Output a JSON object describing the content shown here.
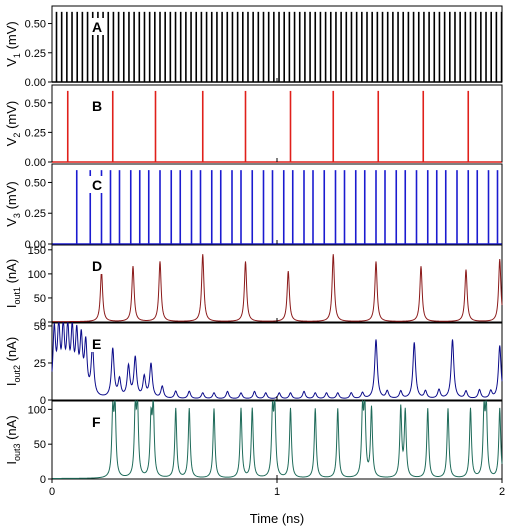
{
  "chart_data": {
    "type": "line",
    "xlabel": "Time (ns)",
    "xlim": [
      0,
      2
    ],
    "x_ticks": [
      0,
      1,
      2
    ],
    "x_tick_labels": [
      "0",
      "1",
      "2"
    ],
    "panels": [
      {
        "letter": "A",
        "ylabel": "V",
        "ylabel_sub": "1",
        "ylabel_unit": " (mV)",
        "color": "#000000",
        "kind": "spikes",
        "ylim": [
          0,
          0.65
        ],
        "y_ticks": [
          "0.00",
          "0.25",
          "0.50"
        ],
        "y_tick_values": [
          0,
          0.25,
          0.5
        ],
        "spike_height": 0.6,
        "spike_times": [
          0.02,
          0.043,
          0.066,
          0.089,
          0.112,
          0.135,
          0.158,
          0.181,
          0.204,
          0.227,
          0.25,
          0.273,
          0.296,
          0.319,
          0.342,
          0.365,
          0.388,
          0.411,
          0.434,
          0.457,
          0.48,
          0.503,
          0.526,
          0.549,
          0.572,
          0.595,
          0.618,
          0.641,
          0.664,
          0.687,
          0.71,
          0.733,
          0.756,
          0.779,
          0.802,
          0.825,
          0.848,
          0.871,
          0.894,
          0.917,
          0.94,
          0.963,
          0.986,
          1.009,
          1.032,
          1.055,
          1.078,
          1.101,
          1.124,
          1.147,
          1.17,
          1.193,
          1.216,
          1.239,
          1.262,
          1.285,
          1.308,
          1.331,
          1.354,
          1.377,
          1.4,
          1.423,
          1.446,
          1.469,
          1.492,
          1.515,
          1.538,
          1.561,
          1.584,
          1.607,
          1.63,
          1.653,
          1.676,
          1.699,
          1.722,
          1.745,
          1.768,
          1.791,
          1.814,
          1.837,
          1.86,
          1.883,
          1.906,
          1.929,
          1.952,
          1.975,
          1.998
        ]
      },
      {
        "letter": "B",
        "ylabel": "V",
        "ylabel_sub": "2",
        "ylabel_unit": " (mV)",
        "color": "#e0201b",
        "kind": "spikes",
        "ylim": [
          0,
          0.65
        ],
        "y_ticks": [
          "0.00",
          "0.25",
          "0.50"
        ],
        "y_tick_values": [
          0,
          0.25,
          0.5
        ],
        "spike_height": 0.6,
        "spike_times": [
          0.07,
          0.27,
          0.46,
          0.67,
          0.86,
          1.06,
          1.25,
          1.45,
          1.65,
          1.85
        ]
      },
      {
        "letter": "C",
        "ylabel": "V",
        "ylabel_sub": "3",
        "ylabel_unit": " (mV)",
        "color": "#1b1bd0",
        "kind": "spikes",
        "ylim": [
          0,
          0.65
        ],
        "y_ticks": [
          "0.00",
          "0.25",
          "0.50"
        ],
        "y_tick_values": [
          0,
          0.25,
          0.5
        ],
        "spike_height": 0.6,
        "spike_times": [
          0.11,
          0.17,
          0.22,
          0.26,
          0.3,
          0.35,
          0.39,
          0.43,
          0.48,
          0.53,
          0.57,
          0.62,
          0.66,
          0.71,
          0.75,
          0.8,
          0.84,
          0.89,
          0.94,
          0.98,
          1.03,
          1.07,
          1.12,
          1.16,
          1.21,
          1.26,
          1.3,
          1.35,
          1.39,
          1.44,
          1.48,
          1.53,
          1.57,
          1.62,
          1.67,
          1.71,
          1.75,
          1.8,
          1.85,
          1.89,
          1.94,
          1.98
        ]
      },
      {
        "letter": "D",
        "ylabel": "I",
        "ylabel_sub": "out1",
        "ylabel_unit": " (nA)",
        "color": "#8b1a1a",
        "kind": "peaks",
        "ylim": [
          0,
          160
        ],
        "y_ticks": [
          "0",
          "50",
          "100",
          "150"
        ],
        "y_tick_values": [
          0,
          50,
          100,
          150
        ],
        "peak_width": 0.006,
        "peaks": [
          [
            0.22,
            105
          ],
          [
            0.36,
            115
          ],
          [
            0.48,
            125
          ],
          [
            0.67,
            140
          ],
          [
            0.86,
            125
          ],
          [
            1.05,
            105
          ],
          [
            1.25,
            140
          ],
          [
            1.44,
            125
          ],
          [
            1.64,
            115
          ],
          [
            1.84,
            108
          ],
          [
            1.99,
            130
          ]
        ]
      },
      {
        "letter": "E",
        "ylabel": "I",
        "ylabel_sub": "out2",
        "ylabel_unit": " (nA)",
        "color": "#0b0b8a",
        "kind": "peaks",
        "ylim": [
          0,
          52
        ],
        "y_ticks": [
          "0",
          "25",
          "50"
        ],
        "y_tick_values": [
          0,
          25,
          50
        ],
        "peak_width": 0.007,
        "peaks": [
          [
            0.01,
            44
          ],
          [
            0.03,
            43
          ],
          [
            0.05,
            42
          ],
          [
            0.07,
            41
          ],
          [
            0.09,
            40
          ],
          [
            0.11,
            38
          ],
          [
            0.13,
            36
          ],
          [
            0.15,
            34
          ],
          [
            0.18,
            33
          ],
          [
            0.27,
            33
          ],
          [
            0.3,
            12
          ],
          [
            0.34,
            21
          ],
          [
            0.37,
            27
          ],
          [
            0.41,
            14
          ],
          [
            0.44,
            23
          ],
          [
            0.49,
            8
          ],
          [
            0.55,
            5
          ],
          [
            0.61,
            5
          ],
          [
            0.67,
            4
          ],
          [
            0.72,
            4
          ],
          [
            0.78,
            5
          ],
          [
            0.84,
            4
          ],
          [
            0.9,
            5
          ],
          [
            0.95,
            4
          ],
          [
            1.01,
            4
          ],
          [
            1.06,
            4
          ],
          [
            1.12,
            5
          ],
          [
            1.17,
            4
          ],
          [
            1.22,
            4
          ],
          [
            1.27,
            4
          ],
          [
            1.33,
            4
          ],
          [
            1.38,
            4
          ],
          [
            1.44,
            40
          ],
          [
            1.49,
            5
          ],
          [
            1.55,
            5
          ],
          [
            1.61,
            38
          ],
          [
            1.66,
            5
          ],
          [
            1.72,
            6
          ],
          [
            1.78,
            40
          ],
          [
            1.84,
            5
          ],
          [
            1.9,
            6
          ],
          [
            1.95,
            5
          ],
          [
            1.99,
            36
          ]
        ]
      },
      {
        "letter": "F",
        "ylabel": "I",
        "ylabel_sub": "out3",
        "ylabel_unit": " (nA)",
        "color": "#1f6b5a",
        "kind": "peaks",
        "ylim": [
          0,
          112
        ],
        "y_ticks": [
          "0",
          "50",
          "100"
        ],
        "y_tick_values": [
          0,
          50,
          100
        ],
        "peak_width": 0.005,
        "peaks": [
          [
            0.27,
            90
          ],
          [
            0.28,
            100
          ],
          [
            0.37,
            95
          ],
          [
            0.38,
            100
          ],
          [
            0.44,
            80
          ],
          [
            0.45,
            100
          ],
          [
            0.55,
            100
          ],
          [
            0.61,
            100
          ],
          [
            0.72,
            100
          ],
          [
            0.84,
            100
          ],
          [
            0.89,
            100
          ],
          [
            0.98,
            90
          ],
          [
            0.99,
            100
          ],
          [
            1.06,
            100
          ],
          [
            1.17,
            100
          ],
          [
            1.27,
            100
          ],
          [
            1.38,
            90
          ],
          [
            1.39,
            100
          ],
          [
            1.42,
            100
          ],
          [
            1.55,
            100
          ],
          [
            1.57,
            95
          ],
          [
            1.67,
            100
          ],
          [
            1.76,
            100
          ],
          [
            1.86,
            100
          ],
          [
            1.92,
            90
          ],
          [
            1.93,
            100
          ],
          [
            1.99,
            100
          ]
        ]
      }
    ]
  }
}
